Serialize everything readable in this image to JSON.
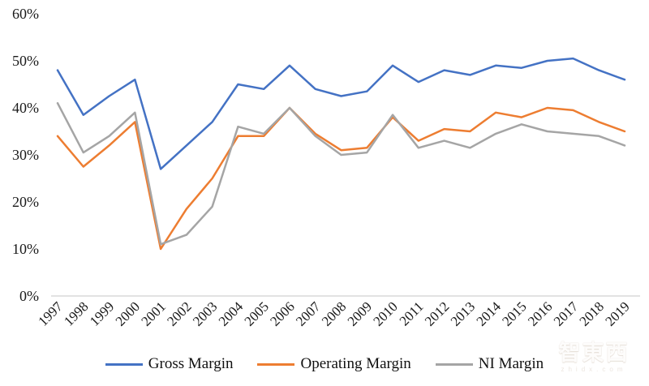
{
  "chart_data": {
    "type": "line",
    "title": "",
    "xlabel": "",
    "ylabel": "",
    "x": [
      "1997",
      "1998",
      "1999",
      "2000",
      "2001",
      "2002",
      "2003",
      "2004",
      "2005",
      "2006",
      "2007",
      "2008",
      "2009",
      "2010",
      "2011",
      "2012",
      "2013",
      "2014",
      "2015",
      "2016",
      "2017",
      "2018",
      "2019"
    ],
    "series": [
      {
        "name": "Gross Margin",
        "color": "#4472C4",
        "values": [
          48,
          38.5,
          42.5,
          46,
          27,
          32,
          37,
          45,
          44,
          49,
          44,
          42.5,
          43.5,
          49,
          45.5,
          48,
          47,
          49,
          48.5,
          50,
          50.5,
          48,
          46
        ]
      },
      {
        "name": "Operating Margin",
        "color": "#ED7D31",
        "values": [
          34,
          27.5,
          32,
          37,
          10,
          18.5,
          25,
          34,
          34,
          40,
          34.5,
          31,
          31.5,
          38,
          33,
          35.5,
          35,
          39,
          38,
          40,
          39.5,
          37,
          35
        ]
      },
      {
        "name": "NI Margin",
        "color": "#A5A5A5",
        "values": [
          41,
          30.5,
          34,
          39,
          11,
          13,
          19,
          36,
          34.5,
          40,
          34,
          30,
          30.5,
          38.5,
          31.5,
          33,
          31.5,
          34.5,
          36.5,
          35,
          34.5,
          34,
          32
        ]
      }
    ],
    "y_ticks": [
      0,
      10,
      20,
      30,
      40,
      50,
      60
    ],
    "y_tick_suffix": "%",
    "ylim": [
      0,
      60
    ],
    "grid": false,
    "axis_color": "#D9D9D9",
    "legend_position": "bottom"
  },
  "watermark": {
    "big_text": "智東西",
    "small_text": "zhidx.com"
  }
}
